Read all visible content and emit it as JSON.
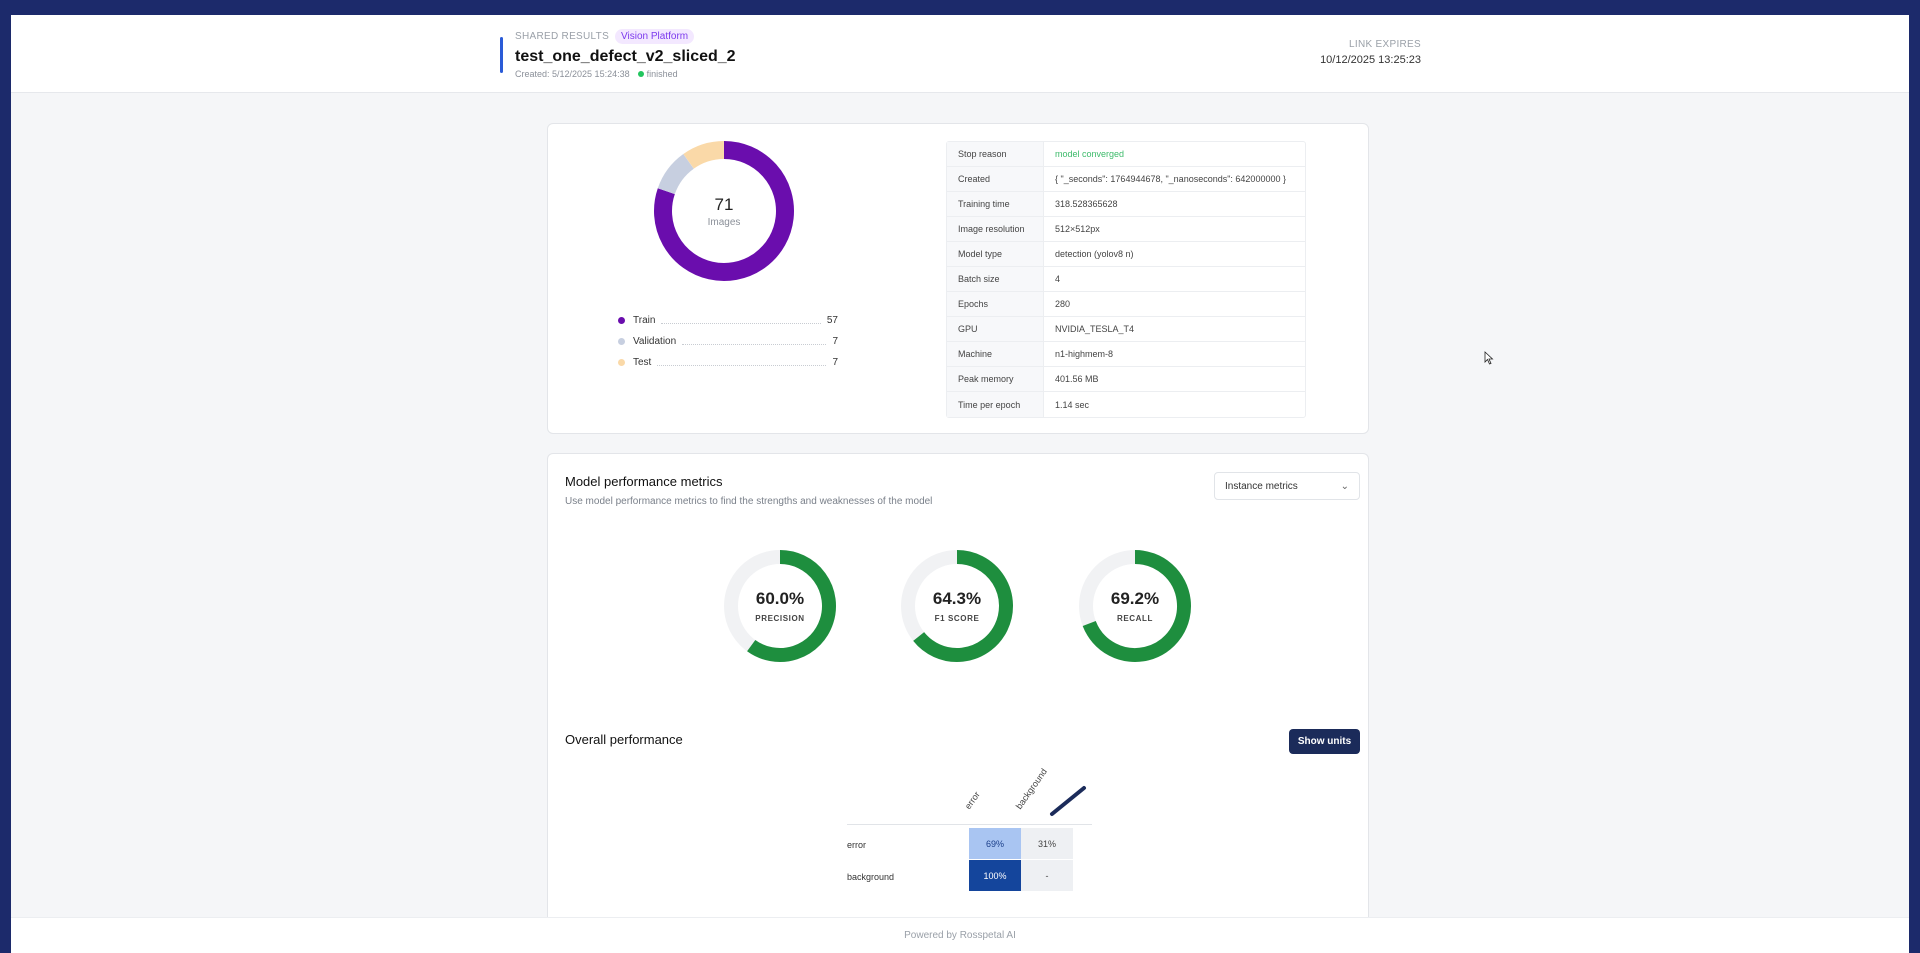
{
  "header": {
    "shared_label": "SHARED RESULTS",
    "badge": "Vision Platform",
    "title": "test_one_defect_v2_sliced_2",
    "created": "Created: 5/12/2025 15:24:38",
    "status": "finished",
    "expires_label": "LINK EXPIRES",
    "expires_value": "10/12/2025 13:25:23"
  },
  "dataset": {
    "total": "71",
    "total_label": "Images",
    "splits": [
      {
        "label": "Train",
        "count": "57",
        "color": "#6a0dad"
      },
      {
        "label": "Validation",
        "count": "7",
        "color": "#c7cfe0"
      },
      {
        "label": "Test",
        "count": "7",
        "color": "#fad9a8"
      }
    ]
  },
  "training_info": [
    {
      "key": "Stop reason",
      "value": "model converged"
    },
    {
      "key": "Created",
      "value": "{ \"_seconds\": 1764944678, \"_nanoseconds\": 642000000 }"
    },
    {
      "key": "Training time",
      "value": "318.528365628"
    },
    {
      "key": "Image resolution",
      "value": "512×512px"
    },
    {
      "key": "Model type",
      "value": "detection (yolov8 n)"
    },
    {
      "key": "Batch size",
      "value": "4"
    },
    {
      "key": "Epochs",
      "value": "280"
    },
    {
      "key": "GPU",
      "value": "NVIDIA_TESLA_T4"
    },
    {
      "key": "Machine",
      "value": "n1-highmem-8"
    },
    {
      "key": "Peak memory",
      "value": "401.56 MB"
    },
    {
      "key": "Time per epoch",
      "value": "1.14 sec"
    }
  ],
  "metrics": {
    "title": "Model performance metrics",
    "subtitle": "Use model performance metrics to find the strengths and weaknesses of the model",
    "select_value": "Instance metrics",
    "gauges": [
      {
        "value": "60.0%",
        "fraction": 0.6,
        "label": "PRECISION"
      },
      {
        "value": "64.3%",
        "fraction": 0.643,
        "label": "F1 SCORE"
      },
      {
        "value": "69.2%",
        "fraction": 0.692,
        "label": "RECALL"
      }
    ],
    "gauge_color": "#1e8e3e"
  },
  "overall": {
    "title": "Overall performance",
    "button": "Show units",
    "columns": [
      "error",
      "background"
    ],
    "rows": [
      {
        "label": "error",
        "cells": [
          "69%",
          "31%"
        ]
      },
      {
        "label": "background",
        "cells": [
          "100%",
          "-"
        ]
      }
    ]
  },
  "footer": "Powered by Rosspetal AI"
}
